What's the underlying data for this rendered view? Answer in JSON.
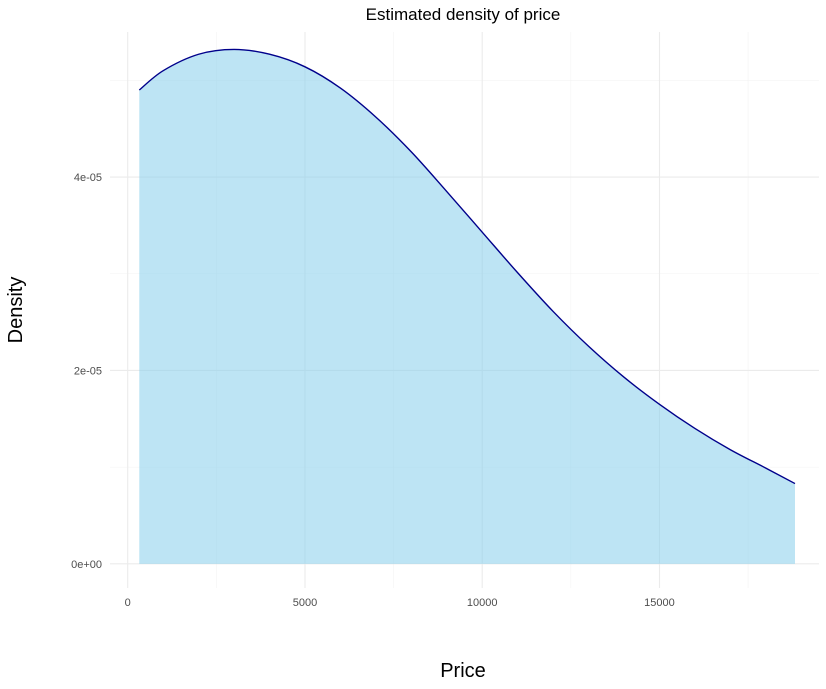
{
  "chart_data": {
    "type": "area",
    "title": "Estimated density of price",
    "xlabel": "Price",
    "ylabel": "Density",
    "xlim": [
      -500,
      19500
    ],
    "ylim": [
      -2.5e-06,
      5.5e-05
    ],
    "x_ticks": [
      0,
      5000,
      10000,
      15000
    ],
    "x_tick_labels": [
      "0",
      "5000",
      "10000",
      "15000"
    ],
    "y_ticks": [
      0,
      2e-05,
      4e-05
    ],
    "y_tick_labels": [
      "0e+00",
      "2e-05",
      "4e-05"
    ],
    "grid": true,
    "legend": "none",
    "fill_color": "#87CEEB",
    "fill_opacity": 0.55,
    "line_color": "#00008B",
    "series": [
      {
        "x": [
          326,
          1000,
          2000,
          3000,
          4000,
          5000,
          6000,
          7000,
          8000,
          9000,
          10000,
          11000,
          12000,
          13000,
          14000,
          15000,
          16000,
          17000,
          18000,
          18823
        ],
        "y": [
          4.9e-05,
          5.1e-05,
          5.27e-05,
          5.32e-05,
          5.27e-05,
          5.14e-05,
          4.92e-05,
          4.62e-05,
          4.26e-05,
          3.85e-05,
          3.43e-05,
          3.01e-05,
          2.61e-05,
          2.25e-05,
          1.93e-05,
          1.65e-05,
          1.4e-05,
          1.18e-05,
          9.9e-06,
          8.3e-06
        ]
      }
    ]
  }
}
